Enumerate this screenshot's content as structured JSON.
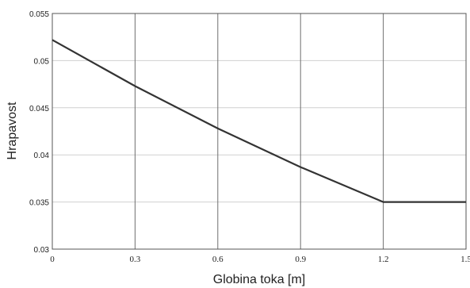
{
  "chart_data": {
    "type": "line",
    "title": "",
    "xlabel": "Globina toka [m]",
    "ylabel": "Hrapavost",
    "xlim": [
      0,
      1.5
    ],
    "ylim": [
      0.03,
      0.055
    ],
    "x_ticks": [
      "0",
      "0.3",
      "0.6",
      "0.9",
      "1.2",
      "1.5"
    ],
    "y_ticks": [
      "0.03",
      "0.035",
      "0.04",
      "0.045",
      "0.05",
      "0.055"
    ],
    "grid": {
      "vertical": true,
      "horizontal": true
    },
    "series": [
      {
        "color": "#333333",
        "x": [
          0,
          0.3,
          0.6,
          0.9,
          1.2,
          1.5
        ],
        "y": [
          0.0522,
          0.0473,
          0.0428,
          0.0387,
          0.035,
          0.035
        ]
      }
    ]
  }
}
